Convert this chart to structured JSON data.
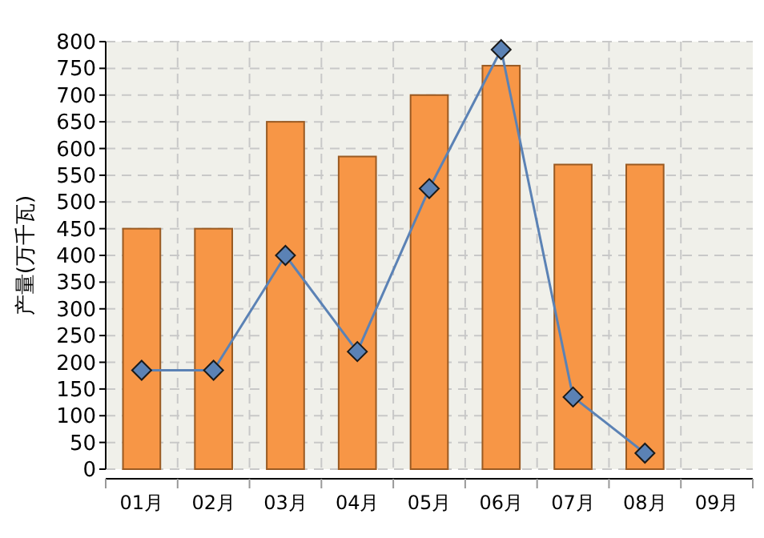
{
  "chart_data": {
    "type": "bar",
    "ylabel": "产量(万千瓦)",
    "categories": [
      "01月",
      "02月",
      "03月",
      "04月",
      "05月",
      "06月",
      "07月",
      "08月",
      "09月"
    ],
    "series": [
      {
        "color": "#f79646",
        "values": [
          450,
          450,
          650,
          585,
          700,
          755,
          570,
          570,
          null
        ]
      },
      {
        "type": "line",
        "color": "#5b82b5",
        "marker": "diamond",
        "values": [
          185,
          185,
          400,
          220,
          525,
          785,
          135,
          30,
          null
        ]
      }
    ],
    "ylim": [
      0,
      800
    ],
    "yticks": [
      0,
      50,
      100,
      150,
      200,
      250,
      300,
      350,
      400,
      450,
      500,
      550,
      600,
      650,
      700,
      750,
      800
    ],
    "grid": true
  }
}
